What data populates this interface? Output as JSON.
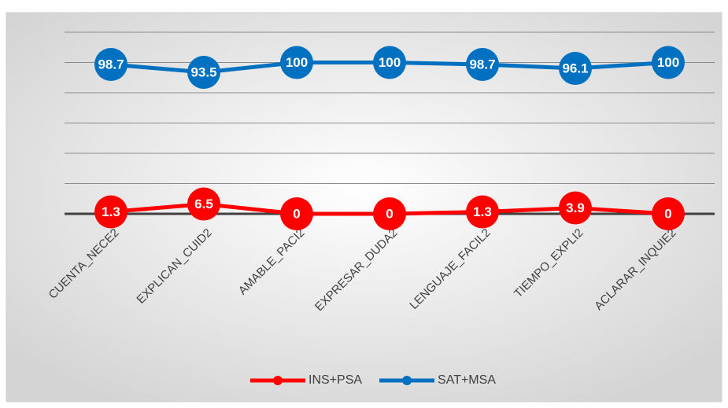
{
  "chart_data": {
    "type": "line",
    "categories": [
      "CUENTA_NECE2",
      "EXPLICAN_CUID2",
      "AMABLE_PACI2",
      "EXPRESAR_DUDA2",
      "LENGUAJE_FACIL2",
      "TIEMPO_EXPLI2",
      "ACLARAR_INQUIE2"
    ],
    "series": [
      {
        "name": "INS+PSA",
        "color": "#ff0000",
        "values": [
          1.3,
          6.5,
          0,
          0,
          1.3,
          3.9,
          0
        ]
      },
      {
        "name": "SAT+MSA",
        "color": "#0070c0",
        "values": [
          98.7,
          93.5,
          100,
          100,
          98.7,
          96.1,
          100
        ]
      }
    ],
    "ylim": [
      0,
      120
    ],
    "yticks": [
      0,
      20,
      40,
      60,
      80,
      100,
      120
    ],
    "grid": true,
    "legend": "bottom"
  }
}
